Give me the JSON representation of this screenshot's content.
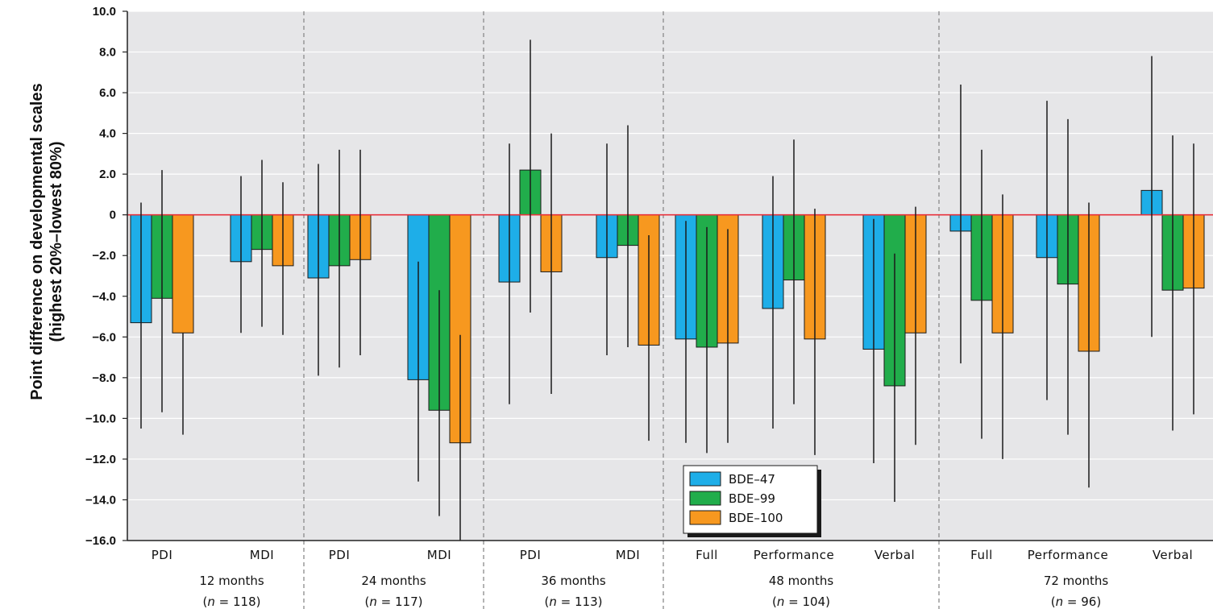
{
  "chart_data": {
    "type": "bar",
    "ylabel_line1": "Point difference on developmental scales",
    "ylabel_line2": "(highest 20%–lowest 80%)",
    "ylim": [
      -16,
      10
    ],
    "yticks": [
      10,
      8,
      6,
      4,
      2,
      0,
      -2,
      -4,
      -6,
      -8,
      -10,
      -12,
      -14,
      -16
    ],
    "ytick_labels": [
      "10.0",
      "8.0",
      "6.0",
      "4.0",
      "2.0",
      "0",
      "−2.0",
      "−4.0",
      "−6.0",
      "−8.0",
      "−10.0",
      "−12.0",
      "−14.0",
      "−16.0"
    ],
    "grid": true,
    "zero_line_color": "#e8323c",
    "legend_position": "bottom-center",
    "series": [
      {
        "name": "BDE–47",
        "color": "#1eaee8"
      },
      {
        "name": "BDE–99",
        "color": "#21ad4b"
      },
      {
        "name": "BDE–100",
        "color": "#f7981f"
      }
    ],
    "groups": [
      {
        "label": "12 months",
        "n_prefix": "(",
        "n_var": "n",
        "n_suffix": " = 118)",
        "categories": [
          {
            "label": "PDI",
            "values": [
              -5.3,
              -4.1,
              -5.8
            ],
            "ci_low": [
              -10.5,
              -9.7,
              -10.8
            ],
            "ci_high": [
              0.6,
              2.2,
              -5.8
            ]
          },
          {
            "label": "MDI",
            "values": [
              -2.3,
              -1.7,
              -2.5
            ],
            "ci_low": [
              -5.8,
              -5.5,
              -5.9
            ],
            "ci_high": [
              1.9,
              2.7,
              1.6
            ]
          }
        ]
      },
      {
        "label": "24 months",
        "n_prefix": "(",
        "n_var": "n",
        "n_suffix": " = 117)",
        "categories": [
          {
            "label": "PDI",
            "values": [
              -3.1,
              -2.5,
              -2.2
            ],
            "ci_low": [
              -7.9,
              -7.5,
              -6.9
            ],
            "ci_high": [
              2.5,
              3.2,
              3.2
            ]
          },
          {
            "label": "MDI",
            "values": [
              -8.1,
              -9.6,
              -11.2
            ],
            "ci_low": [
              -13.1,
              -14.8,
              -16.0
            ],
            "ci_high": [
              -2.3,
              -3.7,
              -5.9
            ]
          }
        ]
      },
      {
        "label": "36 months",
        "n_prefix": "(",
        "n_var": "n",
        "n_suffix": " = 113)",
        "categories": [
          {
            "label": "PDI",
            "values": [
              -3.3,
              2.2,
              -2.8
            ],
            "ci_low": [
              -9.3,
              -4.8,
              -8.8
            ],
            "ci_high": [
              3.5,
              8.6,
              4.0
            ]
          },
          {
            "label": "MDI",
            "values": [
              -2.1,
              -1.5,
              -6.4
            ],
            "ci_low": [
              -6.9,
              -6.5,
              -11.1
            ],
            "ci_high": [
              3.5,
              4.4,
              -1.0
            ]
          }
        ]
      },
      {
        "label": "48 months",
        "n_prefix": "(",
        "n_var": "n",
        "n_suffix": " = 104)",
        "categories": [
          {
            "label": "Full",
            "values": [
              -6.1,
              -6.5,
              -6.3
            ],
            "ci_low": [
              -11.2,
              -11.7,
              -11.2
            ],
            "ci_high": [
              -0.3,
              -0.6,
              -0.7
            ]
          },
          {
            "label": "Performance",
            "values": [
              -4.6,
              -3.2,
              -6.1
            ],
            "ci_low": [
              -10.5,
              -9.3,
              -11.8
            ],
            "ci_high": [
              1.9,
              3.7,
              0.3
            ]
          },
          {
            "label": "Verbal",
            "values": [
              -6.6,
              -8.4,
              -5.8
            ],
            "ci_low": [
              -12.2,
              -14.1,
              -11.3
            ],
            "ci_high": [
              -0.2,
              -1.9,
              0.4
            ]
          }
        ]
      },
      {
        "label": "72 months",
        "n_prefix": "(",
        "n_var": "n",
        "n_suffix": " = 96)",
        "categories": [
          {
            "label": "Full",
            "values": [
              -0.8,
              -4.2,
              -5.8
            ],
            "ci_low": [
              -7.3,
              -11.0,
              -12.0
            ],
            "ci_high": [
              6.4,
              3.2,
              1.0
            ]
          },
          {
            "label": "Performance",
            "values": [
              -2.1,
              -3.4,
              -6.7
            ],
            "ci_low": [
              -9.1,
              -10.8,
              -13.4
            ],
            "ci_high": [
              5.6,
              4.7,
              0.6
            ]
          },
          {
            "label": "Verbal",
            "values": [
              1.2,
              -3.7,
              -3.6
            ],
            "ci_low": [
              -6.0,
              -10.6,
              -9.8
            ],
            "ci_high": [
              7.8,
              3.9,
              3.5
            ]
          }
        ]
      }
    ]
  }
}
